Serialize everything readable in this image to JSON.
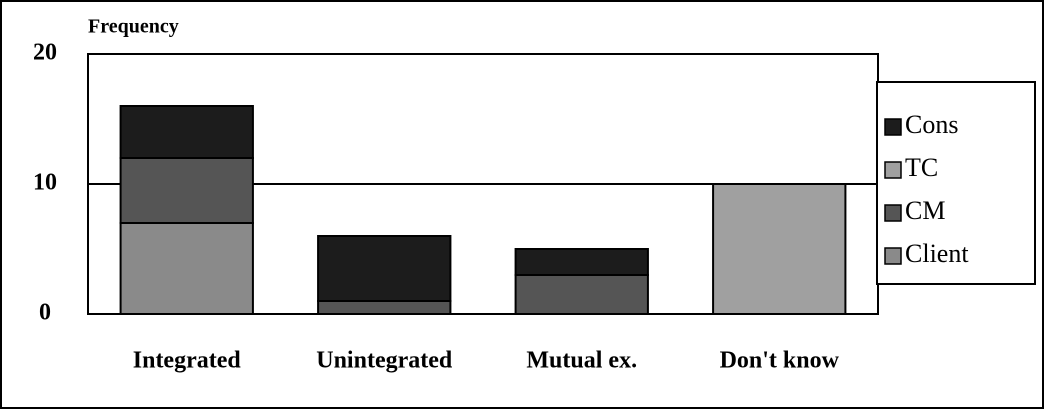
{
  "chart_data": {
    "type": "stacked_bar",
    "y_label": "Frequency",
    "categories": [
      "Integrated",
      "Unintegrated",
      "Mutual ex.",
      "Don't know"
    ],
    "series": [
      {
        "name": "Client",
        "color": "#8a8a8a",
        "values": [
          7,
          0,
          0,
          0
        ]
      },
      {
        "name": "CM",
        "color": "#555555",
        "values": [
          5,
          1,
          3,
          0
        ]
      },
      {
        "name": "TC",
        "color": "#a0a0a0",
        "values": [
          0,
          0,
          0,
          10
        ]
      },
      {
        "name": "Cons",
        "color": "#1c1c1c",
        "values": [
          4,
          5,
          2,
          0
        ]
      }
    ],
    "ylim": [
      0,
      20
    ],
    "yticks": [
      0,
      10,
      20
    ],
    "grid": true,
    "legend": "right"
  }
}
